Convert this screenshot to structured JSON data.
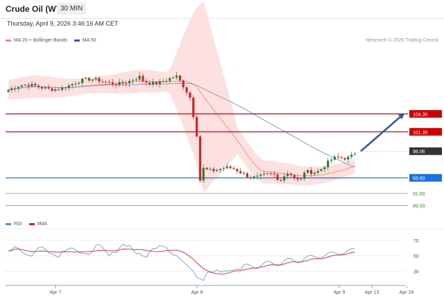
{
  "header": {
    "title": "Crude Oil (WTI)",
    "timeframe": "30 MIN",
    "datetime": "Thursday, April 9, 2026 3:46:16 AM CET"
  },
  "legend": {
    "items": [
      {
        "label": "MA 20 + Bollinger Bands",
        "color": "#f28b82"
      },
      {
        "label": "MA 50",
        "color": "#3b5ba5"
      }
    ],
    "copyright": "Research © 2026 Trading Central"
  },
  "rsi_legend": {
    "items": [
      {
        "label": "RSI",
        "color": "#5b8dd6"
      },
      {
        "label": "9MA",
        "color": "#e02020"
      }
    ]
  },
  "chart_data": {
    "type": "candlestick",
    "x_ticks": [
      "Apr 7",
      "Apr 8",
      "Apr 9",
      "Apr 13",
      "Apr 24"
    ],
    "price_levels": [
      {
        "label": "104.30",
        "value": 104.3,
        "color": "#cc0000",
        "style": "tag"
      },
      {
        "label": "101.30",
        "value": 101.3,
        "color": "#cc0000",
        "style": "tag"
      },
      {
        "label": "98.06",
        "value": 98.06,
        "color": "#333333",
        "style": "current"
      },
      {
        "label": "93.60",
        "value": 93.6,
        "color": "#1e6fe0",
        "style": "tag"
      },
      {
        "label": "91.00",
        "value": 91.0,
        "color": "#2e8b2e",
        "style": "text"
      },
      {
        "label": "89.00",
        "value": 89.0,
        "color": "#2e8b2e",
        "style": "text"
      }
    ],
    "price_ylim": [
      86.5,
      115.0
    ],
    "forecast": {
      "from": 98.06,
      "to": 104.3,
      "color": "#2f5aa8"
    },
    "rsi_ticks": [
      "70",
      "50",
      "30"
    ],
    "rsi_ylim": [
      15,
      78
    ],
    "grid": false,
    "colors": {
      "up": "#2e7d32",
      "down": "#c62828",
      "band": "#fde0e0",
      "ma20": "#f28b82",
      "ma50": "#7f8fc6",
      "rsi": "#5b8dd6",
      "rsi_ma": "#e02020"
    }
  }
}
